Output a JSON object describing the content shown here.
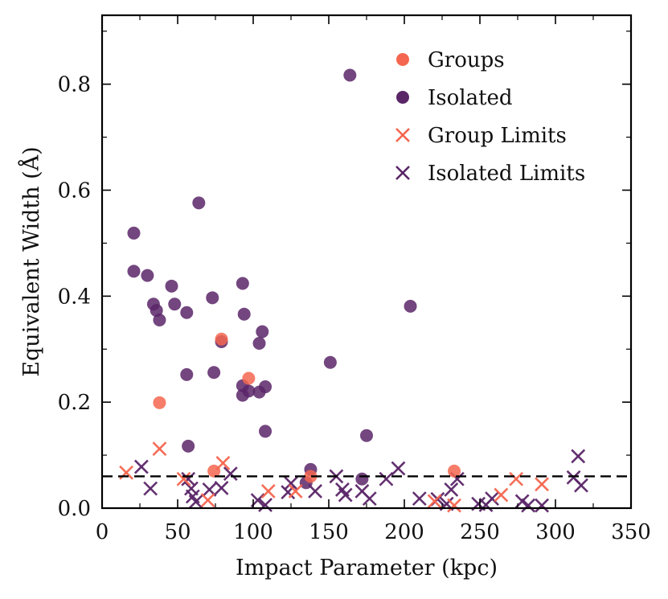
{
  "chart_data": {
    "type": "scatter",
    "title": "",
    "xlabel": "Impact Parameter (kpc)",
    "ylabel": "Equivalent Width (Å)",
    "xlim": [
      0,
      350
    ],
    "ylim": [
      0,
      0.93
    ],
    "xticks": [
      0,
      50,
      100,
      150,
      200,
      250,
      300,
      350
    ],
    "xtick_labels": [
      "0",
      "50",
      "100",
      "150",
      "200",
      "250",
      "300",
      "350"
    ],
    "yticks": [
      0.0,
      0.2,
      0.4,
      0.6,
      0.8
    ],
    "ytick_labels": [
      "0.0",
      "0.2",
      "0.4",
      "0.6",
      "0.8"
    ],
    "grid": false,
    "legend_position": "top-right",
    "reference_line": {
      "style": "dashed",
      "y": 0.06,
      "color": "#000000"
    },
    "series": [
      {
        "name": "Groups",
        "marker": "circle",
        "color": "#f4664f",
        "points": [
          [
            38,
            0.199
          ],
          [
            79,
            0.319
          ],
          [
            97,
            0.245
          ],
          [
            74,
            0.07
          ],
          [
            138,
            0.06
          ],
          [
            233,
            0.07
          ]
        ]
      },
      {
        "name": "Isolated",
        "marker": "circle",
        "color": "#5b2668",
        "points": [
          [
            21,
            0.519
          ],
          [
            21,
            0.447
          ],
          [
            30,
            0.439
          ],
          [
            34,
            0.385
          ],
          [
            36,
            0.373
          ],
          [
            38,
            0.355
          ],
          [
            46,
            0.419
          ],
          [
            48,
            0.385
          ],
          [
            56,
            0.369
          ],
          [
            64,
            0.576
          ],
          [
            73,
            0.397
          ],
          [
            74,
            0.256
          ],
          [
            56,
            0.252
          ],
          [
            57,
            0.117
          ],
          [
            79,
            0.314
          ],
          [
            93,
            0.424
          ],
          [
            94,
            0.366
          ],
          [
            106,
            0.333
          ],
          [
            104,
            0.311
          ],
          [
            93,
            0.231
          ],
          [
            93,
            0.213
          ],
          [
            97,
            0.221
          ],
          [
            104,
            0.219
          ],
          [
            108,
            0.229
          ],
          [
            108,
            0.145
          ],
          [
            151,
            0.275
          ],
          [
            164,
            0.817
          ],
          [
            204,
            0.381
          ],
          [
            175,
            0.137
          ],
          [
            138,
            0.073
          ],
          [
            135,
            0.048
          ],
          [
            172,
            0.055
          ]
        ]
      },
      {
        "name": "Group Limits",
        "marker": "x",
        "color": "#f4664f",
        "points": [
          [
            16,
            0.067
          ],
          [
            38,
            0.112
          ],
          [
            54,
            0.055
          ],
          [
            70,
            0.015
          ],
          [
            80,
            0.085
          ],
          [
            110,
            0.032
          ],
          [
            128,
            0.032
          ],
          [
            220,
            0.013
          ],
          [
            233,
            0.005
          ],
          [
            264,
            0.025
          ],
          [
            274,
            0.055
          ],
          [
            291,
            0.045
          ]
        ]
      },
      {
        "name": "Isolated Limits",
        "marker": "x",
        "color": "#5b2668",
        "points": [
          [
            26,
            0.078
          ],
          [
            32,
            0.037
          ],
          [
            57,
            0.055
          ],
          [
            59,
            0.037
          ],
          [
            60,
            0.022
          ],
          [
            62,
            0.012
          ],
          [
            71,
            0.035
          ],
          [
            79,
            0.038
          ],
          [
            85,
            0.065
          ],
          [
            103,
            0.015
          ],
          [
            108,
            0.006
          ],
          [
            123,
            0.03
          ],
          [
            125,
            0.047
          ],
          [
            141,
            0.032
          ],
          [
            155,
            0.06
          ],
          [
            159,
            0.035
          ],
          [
            161,
            0.025
          ],
          [
            172,
            0.032
          ],
          [
            177,
            0.018
          ],
          [
            188,
            0.055
          ],
          [
            196,
            0.075
          ],
          [
            210,
            0.018
          ],
          [
            222,
            0.017
          ],
          [
            228,
            0.008
          ],
          [
            231,
            0.035
          ],
          [
            235,
            0.055
          ],
          [
            249,
            0.008
          ],
          [
            254,
            0.006
          ],
          [
            258,
            0.018
          ],
          [
            278,
            0.013
          ],
          [
            282,
            0.005
          ],
          [
            291,
            0.005
          ],
          [
            312,
            0.058
          ],
          [
            315,
            0.098
          ],
          [
            317,
            0.043
          ]
        ]
      }
    ]
  }
}
